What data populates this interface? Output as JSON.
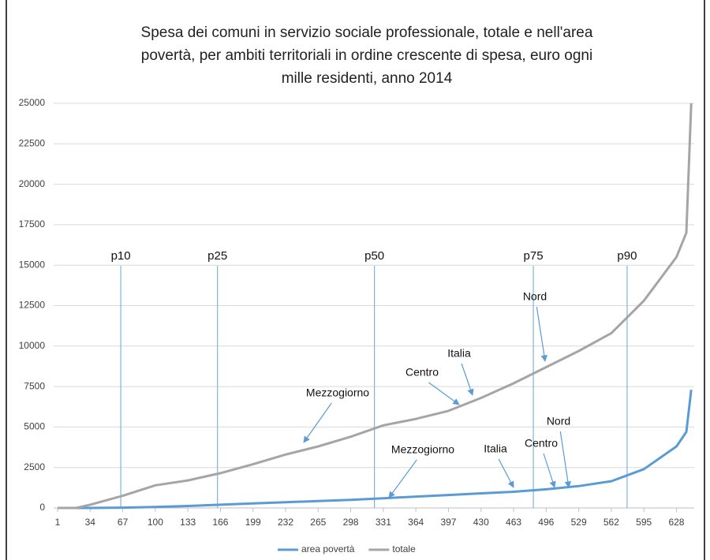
{
  "chart_data": {
    "type": "line",
    "title": [
      "Spesa dei comuni in servizio sociale professionale, totale e nell'area",
      "povertà, per ambiti territoriali in ordine crescente di spesa,  euro ogni",
      "mille residenti, anno 2014"
    ],
    "x": [
      1,
      20,
      34,
      67,
      100,
      133,
      166,
      199,
      232,
      265,
      298,
      331,
      364,
      397,
      430,
      463,
      496,
      529,
      562,
      595,
      628,
      638,
      643
    ],
    "series": [
      {
        "name": "area povertà",
        "color": "#5b9bd5",
        "values": [
          0,
          0,
          0,
          20,
          60,
          120,
          200,
          280,
          350,
          430,
          500,
          600,
          700,
          800,
          900,
          1000,
          1150,
          1350,
          1650,
          2400,
          3800,
          4700,
          7300
        ]
      },
      {
        "name": "totale",
        "color": "#a5a5a5",
        "values": [
          0,
          0,
          200,
          750,
          1400,
          1700,
          2150,
          2700,
          3300,
          3800,
          4400,
          5100,
          5500,
          6000,
          6800,
          7700,
          8700,
          9700,
          10800,
          12800,
          15500,
          17000,
          25000
        ]
      }
    ],
    "xlim": [
      -3,
      646
    ],
    "xticks": [
      1,
      34,
      67,
      100,
      133,
      166,
      199,
      232,
      265,
      298,
      331,
      364,
      397,
      430,
      463,
      496,
      529,
      562,
      595,
      628
    ],
    "ylim": [
      0,
      25000
    ],
    "yticks": [
      0,
      2500,
      5000,
      7500,
      10000,
      12500,
      15000,
      17500,
      20000,
      22500,
      25000
    ],
    "grid": true,
    "legend": "bottom",
    "percentiles": [
      {
        "label": "p10",
        "x": 65
      },
      {
        "label": "p25",
        "x": 163
      },
      {
        "label": "p50",
        "x": 322
      },
      {
        "label": "p75",
        "x": 483
      },
      {
        "label": "p90",
        "x": 578
      }
    ],
    "percentile_color": "#7fb3d5",
    "annotations": [
      "Mezzogiorno",
      "Centro",
      "Italia",
      "Nord",
      "Mezzogiorno",
      "Italia",
      "Centro",
      "Nord"
    ]
  }
}
